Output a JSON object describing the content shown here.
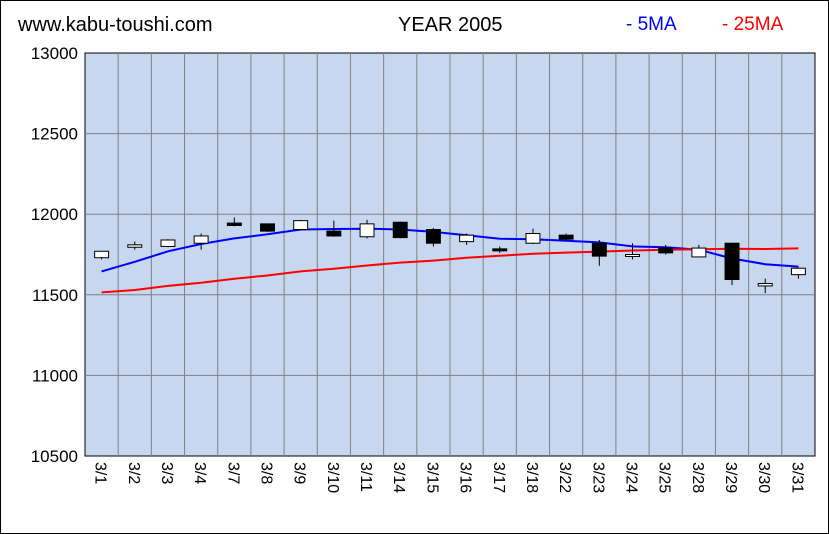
{
  "header": {
    "site": "www.kabu-toushi.com",
    "title": "YEAR 2005"
  },
  "chart_data": {
    "type": "candlestick",
    "title": "YEAR 2005",
    "categories": [
      "3/1",
      "3/2",
      "3/3",
      "3/4",
      "3/7",
      "3/8",
      "3/9",
      "3/10",
      "3/11",
      "3/14",
      "3/15",
      "3/16",
      "3/17",
      "3/18",
      "3/22",
      "3/23",
      "3/24",
      "3/25",
      "3/28",
      "3/29",
      "3/30",
      "3/31"
    ],
    "ohlc": [
      {
        "open": 11730,
        "high": 11770,
        "low": 11720,
        "close": 11770
      },
      {
        "open": 11795,
        "high": 11830,
        "low": 11780,
        "close": 11810
      },
      {
        "open": 11800,
        "high": 11845,
        "low": 11795,
        "close": 11840
      },
      {
        "open": 11820,
        "high": 11880,
        "low": 11780,
        "close": 11865
      },
      {
        "open": 11945,
        "high": 11980,
        "low": 11925,
        "close": 11930
      },
      {
        "open": 11940,
        "high": 11940,
        "low": 11890,
        "close": 11895
      },
      {
        "open": 11905,
        "high": 11965,
        "low": 11905,
        "close": 11960
      },
      {
        "open": 11895,
        "high": 11960,
        "low": 11860,
        "close": 11865
      },
      {
        "open": 11860,
        "high": 11965,
        "low": 11850,
        "close": 11940
      },
      {
        "open": 11950,
        "high": 11955,
        "low": 11850,
        "close": 11855
      },
      {
        "open": 11905,
        "high": 11915,
        "low": 11800,
        "close": 11820
      },
      {
        "open": 11830,
        "high": 11880,
        "low": 11810,
        "close": 11870
      },
      {
        "open": 11785,
        "high": 11800,
        "low": 11760,
        "close": 11775
      },
      {
        "open": 11820,
        "high": 11910,
        "low": 11815,
        "close": 11880
      },
      {
        "open": 11870,
        "high": 11880,
        "low": 11840,
        "close": 11845
      },
      {
        "open": 11820,
        "high": 11840,
        "low": 11680,
        "close": 11740
      },
      {
        "open": 11750,
        "high": 11820,
        "low": 11720,
        "close": 11750
      },
      {
        "open": 11790,
        "high": 11810,
        "low": 11750,
        "close": 11760
      },
      {
        "open": 11735,
        "high": 11810,
        "low": 11735,
        "close": 11790
      },
      {
        "open": 11820,
        "high": 11820,
        "low": 11560,
        "close": 11595
      },
      {
        "open": 11555,
        "high": 11600,
        "low": 11510,
        "close": 11570
      },
      {
        "open": 11625,
        "high": 11670,
        "low": 11600,
        "close": 11665
      }
    ],
    "series": [
      {
        "name": "5MA",
        "color": "#0000ff",
        "values": [
          11645,
          11705,
          11770,
          11815,
          11850,
          11875,
          11905,
          11908,
          11910,
          11905,
          11890,
          11870,
          11848,
          11845,
          11835,
          11825,
          11800,
          11795,
          11780,
          11725,
          11690,
          11675
        ]
      },
      {
        "name": "25MA",
        "color": "#ff0000",
        "values": [
          11515,
          11530,
          11555,
          11575,
          11600,
          11620,
          11645,
          11662,
          11682,
          11700,
          11712,
          11730,
          11742,
          11755,
          11762,
          11768,
          11775,
          11780,
          11782,
          11786,
          11784,
          11788
        ]
      }
    ],
    "legend_labels": [
      "- 5MA",
      "- 25MA"
    ],
    "ylim": [
      10500,
      13000
    ],
    "yticks": [
      13000,
      12500,
      12000,
      11500,
      11000,
      10500
    ],
    "grid": true,
    "legend_position": "top-right",
    "colors": {
      "plot_background": "#c7d7ef",
      "grid": "#808080",
      "bullish_body": "#ffffff",
      "bearish_body": "#000000"
    }
  }
}
